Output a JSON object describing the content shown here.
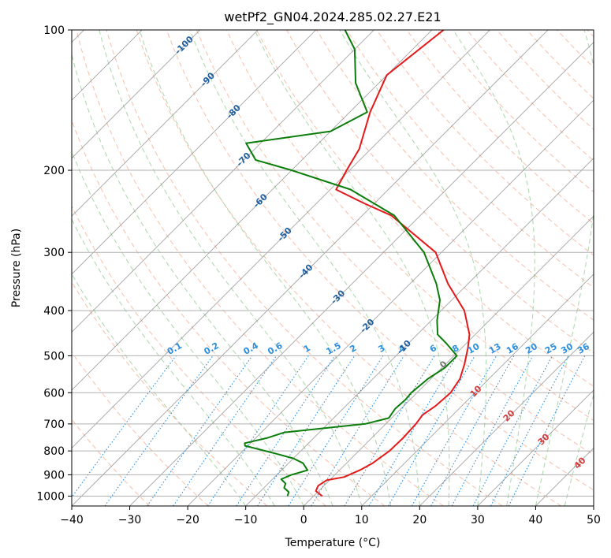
{
  "chart_data": {
    "type": "line",
    "subtype": "skew-t log-p",
    "title": "wetPf2_GN04.2024.285.02.27.E21",
    "xlabel": "Temperature (°C)",
    "ylabel": "Pressure (hPa)",
    "xlim": [
      -40,
      50
    ],
    "ylim": [
      1050,
      100
    ],
    "y_scale": "log",
    "grid": true,
    "x_ticks": [
      "−40",
      "−30",
      "−20",
      "−10",
      "0",
      "10",
      "20",
      "30",
      "40",
      "50"
    ],
    "y_ticks": [
      "100",
      "200",
      "300",
      "400",
      "500",
      "600",
      "700",
      "800",
      "900",
      "1000"
    ],
    "series": [
      {
        "color": "#e41a1a",
        "points": [
          [
            1000,
            1.5
          ],
          [
            975,
            -0.5
          ],
          [
            950,
            -1.0
          ],
          [
            925,
            -0.5
          ],
          [
            910,
            2.0
          ],
          [
            880,
            3.5
          ],
          [
            850,
            4.5
          ],
          [
            800,
            5.3
          ],
          [
            750,
            5.4
          ],
          [
            700,
            5.2
          ],
          [
            670,
            4.8
          ],
          [
            640,
            5.5
          ],
          [
            600,
            5.8
          ],
          [
            560,
            5.0
          ],
          [
            520,
            3.2
          ],
          [
            480,
            1.0
          ],
          [
            450,
            -1.0
          ],
          [
            400,
            -6.0
          ],
          [
            350,
            -13.5
          ],
          [
            300,
            -21.0
          ],
          [
            250,
            -35.0
          ],
          [
            235,
            -42.0
          ],
          [
            220,
            -49.0
          ],
          [
            200,
            -50.5
          ],
          [
            180,
            -52.0
          ],
          [
            150,
            -56.5
          ],
          [
            125,
            -60.0
          ],
          [
            100,
            -58.0
          ]
        ]
      },
      {
        "color": "#0a7d0a",
        "points": [
          [
            1000,
            -4.5
          ],
          [
            980,
            -5.0
          ],
          [
            960,
            -6.5
          ],
          [
            940,
            -7.0
          ],
          [
            920,
            -8.5
          ],
          [
            900,
            -7.5
          ],
          [
            880,
            -5.5
          ],
          [
            850,
            -7.5
          ],
          [
            830,
            -10.0
          ],
          [
            810,
            -14.0
          ],
          [
            780,
            -20.5
          ],
          [
            770,
            -21.0
          ],
          [
            750,
            -18.0
          ],
          [
            730,
            -16.0
          ],
          [
            700,
            -3.5
          ],
          [
            680,
            -0.5
          ],
          [
            650,
            -1.0
          ],
          [
            620,
            -0.8
          ],
          [
            600,
            -1.0
          ],
          [
            560,
            -0.5
          ],
          [
            530,
            0.5
          ],
          [
            500,
            0.5
          ],
          [
            470,
            -3.5
          ],
          [
            450,
            -6.5
          ],
          [
            420,
            -9.0
          ],
          [
            380,
            -12.0
          ],
          [
            350,
            -15.5
          ],
          [
            300,
            -23.0
          ],
          [
            250,
            -34.5
          ],
          [
            220,
            -46.5
          ],
          [
            200,
            -60.0
          ],
          [
            190,
            -68.0
          ],
          [
            175,
            -72.5
          ],
          [
            165,
            -60.0
          ],
          [
            150,
            -57.0
          ],
          [
            130,
            -64.0
          ],
          [
            110,
            -70.0
          ],
          [
            100,
            -75.0
          ]
        ]
      }
    ],
    "isotherm_labels": [
      "-100",
      "-90",
      "-80",
      "-70",
      "-60",
      "-50",
      "-40",
      "-30",
      "-20",
      "-10"
    ],
    "mixing_ratio_labels": [
      "0.1",
      "0.2",
      "0.4",
      "0.6",
      "1",
      "1.5",
      "2",
      "3",
      "4",
      "6",
      "8",
      "10",
      "13",
      "16",
      "20",
      "25",
      "30",
      "36"
    ],
    "moist_adiabat_labels": [
      "0",
      "10",
      "20",
      "30",
      "40"
    ]
  },
  "colors": {
    "temperature": "#e41a1a",
    "dewpoint": "#0a7d0a",
    "isotherm_label": "#1f5fa0",
    "mixing_ratio": "#2b8fe0",
    "moist_label": "#d43a3a",
    "dry_adiabat": "#f5a98c",
    "moist_adiabat": "#8fc88f",
    "isotherm_line": "#808080"
  }
}
